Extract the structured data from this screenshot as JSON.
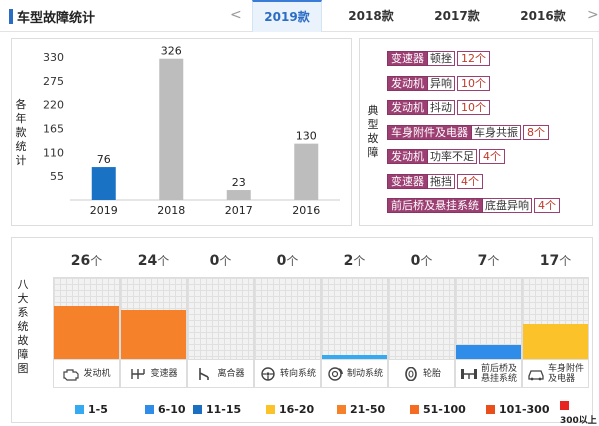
{
  "header": {
    "title": "车型故障统计",
    "prev_arrow": "<",
    "next_arrow": ">",
    "tabs": [
      {
        "label": "2019款",
        "active": true
      },
      {
        "label": "2018款",
        "active": false
      },
      {
        "label": "2017款",
        "active": false
      },
      {
        "label": "2016款",
        "active": false
      }
    ]
  },
  "yearly_chart": {
    "y_title": "各年款统计",
    "chart_data": {
      "type": "bar",
      "categories": [
        "2019",
        "2018",
        "2017",
        "2016"
      ],
      "values": [
        76,
        326,
        23,
        130
      ],
      "highlight_index": 0,
      "colors": {
        "highlight": "#1a72c4",
        "normal": "#bdbdbd"
      },
      "yticks": [
        55,
        110,
        165,
        220,
        275,
        330
      ],
      "ylim": [
        0,
        330
      ]
    }
  },
  "typical_faults": {
    "title": "典型故障",
    "color": "#9c3f73",
    "items": [
      {
        "category": "变速器",
        "desc": "顿挫",
        "count": "12个"
      },
      {
        "category": "发动机",
        "desc": "异响",
        "count": "10个"
      },
      {
        "category": "发动机",
        "desc": "抖动",
        "count": "10个"
      },
      {
        "category": "车身附件及电器",
        "desc": "车身共振",
        "count": "8个"
      },
      {
        "category": "发动机",
        "desc": "功率不足",
        "count": "4个"
      },
      {
        "category": "变速器",
        "desc": "拖挡",
        "count": "4个"
      },
      {
        "category": "前后桥及悬挂系统",
        "desc": "底盘异响",
        "count": "4个"
      }
    ]
  },
  "systems": {
    "title": "八大系统故障图",
    "unit": "个",
    "items": [
      {
        "count": 26,
        "label": "发动机",
        "label2": "",
        "color": "#f5822a",
        "icon": "engine-icon"
      },
      {
        "count": 24,
        "label": "变速器",
        "label2": "",
        "color": "#f5822a",
        "icon": "gearbox-icon"
      },
      {
        "count": 0,
        "label": "离合器",
        "label2": "",
        "color": "",
        "icon": "clutch-icon"
      },
      {
        "count": 0,
        "label": "转向系统",
        "label2": "",
        "color": "",
        "icon": "steering-wheel-icon"
      },
      {
        "count": 2,
        "label": "制动系统",
        "label2": "",
        "color": "#36aaf0",
        "icon": "brake-disc-icon"
      },
      {
        "count": 0,
        "label": "轮胎",
        "label2": "",
        "color": "",
        "icon": "tire-icon"
      },
      {
        "count": 7,
        "label": "前后桥及",
        "label2": "悬挂系统",
        "color": "#2f8ce8",
        "icon": "axle-icon"
      },
      {
        "count": 17,
        "label": "车身附件",
        "label2": "及电器",
        "color": "#fcc22a",
        "icon": "car-body-icon"
      }
    ],
    "max_count": 26
  },
  "legend": [
    {
      "label": "1-5",
      "color": "#36aaf0"
    },
    {
      "label": "6-10",
      "color": "#2f8ce8"
    },
    {
      "label": "11-15",
      "color": "#1a6fc0"
    },
    {
      "label": "16-20",
      "color": "#fcc22a"
    },
    {
      "label": "21-50",
      "color": "#f5822a"
    },
    {
      "label": "51-100",
      "color": "#f46b21"
    },
    {
      "label": "101-300",
      "color": "#e94e1b"
    },
    {
      "label": "300以上",
      "color": "#e8251f"
    }
  ]
}
